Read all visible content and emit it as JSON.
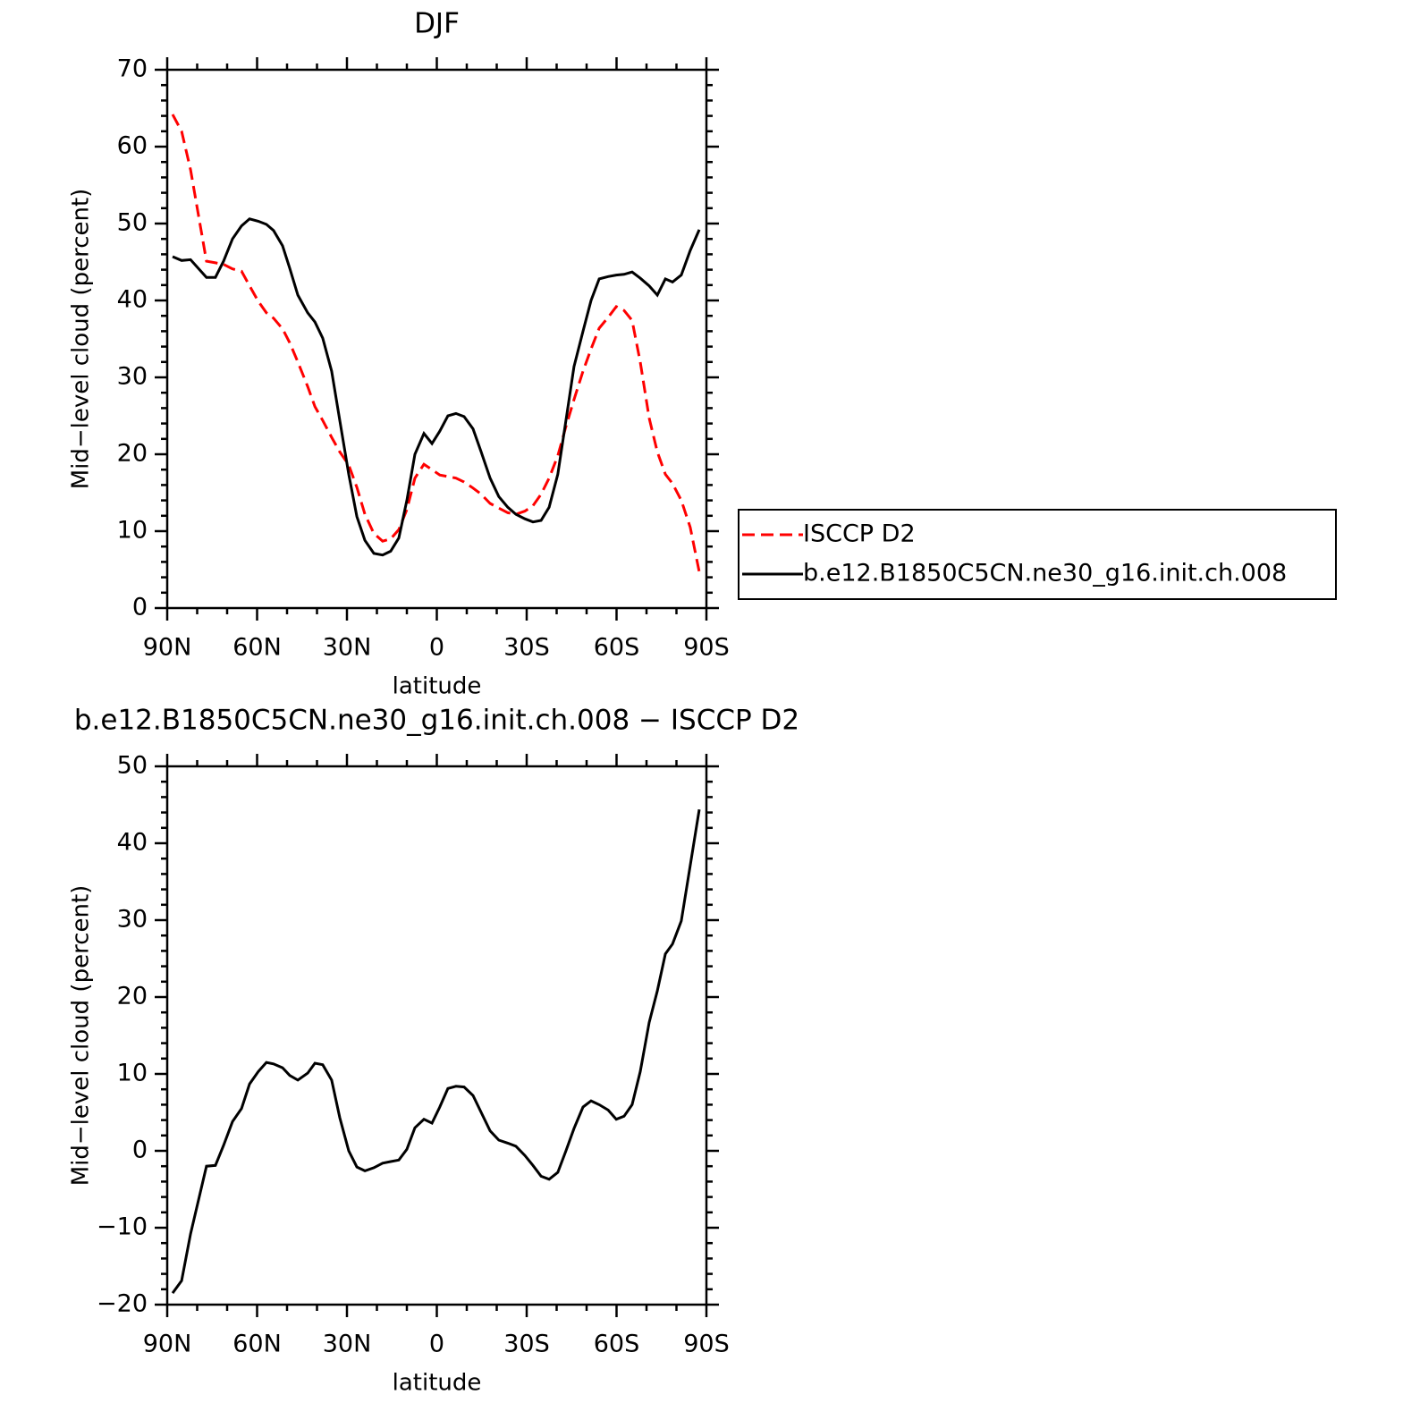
{
  "chart_data": [
    {
      "type": "line",
      "title": "DJF",
      "xlabel": "latitude",
      "ylabel": "Mid−level cloud (percent)",
      "x": [
        88.2,
        85.2,
        82.2,
        76.9,
        73.9,
        71.2,
        68.2,
        65.2,
        62.5,
        59.6,
        56.9,
        54.5,
        51.5,
        49.1,
        46.4,
        43.1,
        40.7,
        38.1,
        35.1,
        32.4,
        29.4,
        26.7,
        24.0,
        21.0,
        18.1,
        15.4,
        12.7,
        10.0,
        7.3,
        4.3,
        1.6,
        -1.0,
        -3.7,
        -6.4,
        -9.1,
        -12.1,
        -14.8,
        -17.8,
        -20.7,
        -23.7,
        -26.4,
        -29.4,
        -32.1,
        -34.8,
        -37.5,
        -40.4,
        -43.1,
        -45.8,
        -48.8,
        -51.5,
        -54.2,
        -57.2,
        -59.9,
        -62.5,
        -65.2,
        -67.9,
        -70.9,
        -73.6,
        -76.3,
        -78.7,
        -81.6,
        -84.6,
        -87.6
      ],
      "series": [
        {
          "name": "ISCCP D2",
          "color": "#ff0000",
          "style": "dashed",
          "values": [
            64.2,
            62.0,
            57.0,
            45.1,
            44.9,
            44.7,
            44.1,
            43.8,
            41.9,
            39.9,
            38.4,
            37.7,
            36.3,
            34.5,
            32.0,
            28.8,
            26.2,
            24.4,
            22.2,
            20.3,
            18.6,
            15.7,
            12.2,
            9.7,
            8.7,
            9.0,
            10.2,
            12.8,
            16.9,
            18.7,
            18.0,
            17.3,
            17.1,
            16.9,
            16.4,
            15.6,
            14.8,
            13.6,
            13.0,
            12.4,
            12.2,
            12.6,
            13.3,
            14.8,
            16.9,
            19.8,
            23.6,
            27.1,
            30.8,
            33.7,
            36.4,
            37.8,
            39.2,
            38.7,
            37.4,
            32.0,
            24.7,
            20.3,
            17.4,
            16.2,
            14.0,
            10.5,
            4.7
          ]
        },
        {
          "name": "b.e12.B1850C5CN.ne30_g16.init.ch.008",
          "color": "#000000",
          "style": "solid",
          "values": [
            45.7,
            45.2,
            45.3,
            43.0,
            43.0,
            45.1,
            48.0,
            49.7,
            50.6,
            50.3,
            49.9,
            49.1,
            47.1,
            44.2,
            40.7,
            38.4,
            37.2,
            35.1,
            30.8,
            24.4,
            17.4,
            11.9,
            8.8,
            7.1,
            6.9,
            7.4,
            9.1,
            14.0,
            20.0,
            22.7,
            21.4,
            23.0,
            25.0,
            25.3,
            24.9,
            23.3,
            20.3,
            16.9,
            14.5,
            13.1,
            12.2,
            11.6,
            11.2,
            11.4,
            13.1,
            17.4,
            24.4,
            31.4,
            36.0,
            40.0,
            42.8,
            43.1,
            43.3,
            43.4,
            43.7,
            42.9,
            41.9,
            40.7,
            42.8,
            42.4,
            43.3,
            46.5,
            49.2
          ]
        }
      ],
      "xlim": [
        90,
        -90
      ],
      "xticks": [
        {
          "value": 90,
          "label": "90N"
        },
        {
          "value": 60,
          "label": "60N"
        },
        {
          "value": 30,
          "label": "30N"
        },
        0,
        {
          "value": -30,
          "label": "30S"
        },
        {
          "value": -60,
          "label": "60S"
        },
        {
          "value": -90,
          "label": "90S"
        }
      ],
      "ylim": [
        0,
        70
      ],
      "yticks": [
        0,
        10,
        20,
        30,
        40,
        50,
        60,
        70
      ],
      "legend": "outside right"
    },
    {
      "type": "line",
      "title": "b.e12.B1850C5CN.ne30_g16.init.ch.008 − ISCCP D2",
      "xlabel": "latitude",
      "ylabel": "Mid−level cloud (percent)",
      "x": [
        88.2,
        85.2,
        82.2,
        76.9,
        73.9,
        71.2,
        68.2,
        65.2,
        62.5,
        59.6,
        56.9,
        54.5,
        51.5,
        49.1,
        46.4,
        43.1,
        40.7,
        38.1,
        35.1,
        32.4,
        29.4,
        26.7,
        24.0,
        21.0,
        18.1,
        15.4,
        12.7,
        10.0,
        7.3,
        4.3,
        1.6,
        -1.0,
        -3.7,
        -6.4,
        -9.1,
        -12.1,
        -14.8,
        -17.8,
        -20.7,
        -23.7,
        -26.4,
        -29.4,
        -32.1,
        -34.8,
        -37.5,
        -40.4,
        -43.1,
        -45.8,
        -48.8,
        -51.5,
        -54.2,
        -57.2,
        -59.9,
        -62.5,
        -65.2,
        -67.9,
        -70.9,
        -73.6,
        -76.3,
        -78.7,
        -81.6,
        -84.6,
        -87.6
      ],
      "series": [
        {
          "color": "#000000",
          "style": "solid",
          "values": [
            -18.5,
            -16.9,
            -10.8,
            -2.0,
            -1.9,
            0.7,
            3.8,
            5.5,
            8.7,
            10.3,
            11.5,
            11.3,
            10.8,
            9.8,
            9.2,
            10.1,
            11.4,
            11.2,
            9.2,
            4.3,
            0.0,
            -2.1,
            -2.6,
            -2.2,
            -1.6,
            -1.4,
            -1.2,
            0.2,
            3.0,
            4.1,
            3.6,
            5.7,
            8.1,
            8.4,
            8.3,
            7.2,
            5.0,
            2.6,
            1.4,
            1.0,
            0.6,
            -0.6,
            -1.9,
            -3.3,
            -3.7,
            -2.8,
            0.0,
            2.9,
            5.7,
            6.5,
            6.0,
            5.3,
            4.1,
            4.5,
            6.0,
            10.3,
            16.7,
            20.8,
            25.6,
            26.9,
            29.9,
            37.1,
            44.4
          ]
        }
      ],
      "xlim": [
        90,
        -90
      ],
      "xticks": [
        {
          "value": 90,
          "label": "90N"
        },
        {
          "value": 60,
          "label": "60N"
        },
        {
          "value": 30,
          "label": "30N"
        },
        0,
        {
          "value": -30,
          "label": "30S"
        },
        {
          "value": -60,
          "label": "60S"
        },
        {
          "value": -90,
          "label": "90S"
        }
      ],
      "ylim": [
        -20,
        50
      ],
      "yticks": [
        {
          "value": -20,
          "label": "−20"
        },
        {
          "value": -10,
          "label": "−10"
        },
        0,
        10,
        20,
        30,
        40,
        50
      ]
    }
  ]
}
